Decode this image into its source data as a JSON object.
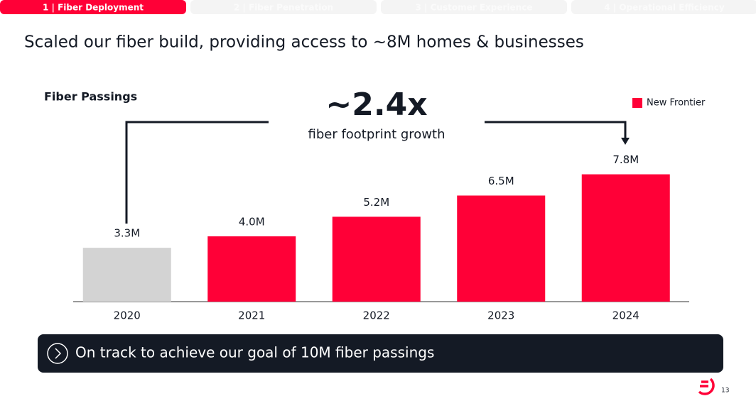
{
  "tabs": [
    "1 | Fiber Deployment",
    "2 | Fiber Penetration",
    "3 | Customer Experience",
    "4 | Operational Efficiency"
  ],
  "slide_title": "Scaled our fiber build, providing access to ~8M homes & businesses",
  "chart_data": {
    "type": "bar",
    "title": "Fiber Passings",
    "annotation": {
      "headline": "~2.4x",
      "text": "fiber footprint growth"
    },
    "categories": [
      "2020",
      "2021",
      "2022",
      "2023",
      "2024"
    ],
    "series": [
      {
        "name": "New Frontier",
        "color": "#ff0037",
        "values": [
          3.3,
          4.0,
          5.2,
          6.5,
          7.8
        ],
        "value_labels": [
          "3.3M",
          "4.0M",
          "5.2M",
          "6.5M",
          "7.8M"
        ],
        "bar_colors": [
          "#d3d3d3",
          "#ff0037",
          "#ff0037",
          "#ff0037",
          "#ff0037"
        ]
      }
    ],
    "legend": "top-right"
  },
  "callout": "On track to achieve our goal of 10M fiber passings",
  "page_number": "13"
}
